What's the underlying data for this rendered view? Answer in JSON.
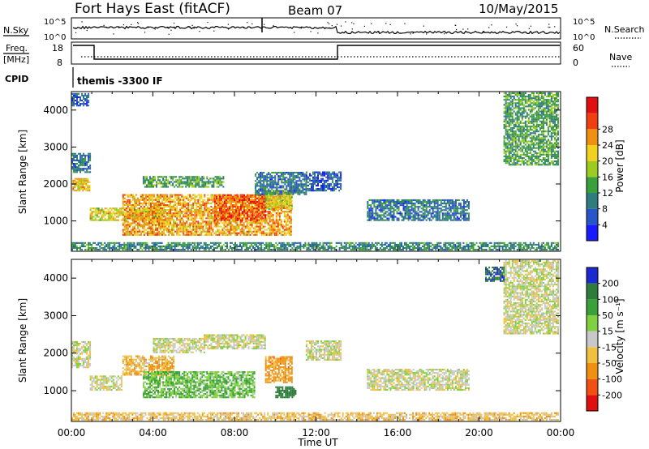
{
  "header": {
    "station": "Fort Hays East (fitACF)",
    "beam": "Beam 07",
    "date": "10/May/2015"
  },
  "strip_panels": {
    "nsky_label": "N.Sky",
    "nsearch_label": "N.Search",
    "freq_label_line1": "Freq.",
    "freq_label_line2": "[MHz]",
    "nave_label": "Nave",
    "cpid_label": "CPID",
    "cpid_text": "themis -3300 IF",
    "noise_left_ticks": [
      "10^5",
      "10^0"
    ],
    "noise_right_ticks": [
      "10^5",
      "10^0"
    ],
    "freq_left_ticks": [
      "18",
      "8"
    ],
    "freq_right_ticks": [
      "60",
      "0"
    ]
  },
  "chart_data": [
    {
      "type": "heatmap",
      "name": "power",
      "ylabel": "Slant Range [km]",
      "xlabel": "",
      "xlim": [
        0,
        24
      ],
      "ylim": [
        180,
        4500
      ],
      "ytick_labels": [
        "1000",
        "2000",
        "3000",
        "4000"
      ],
      "ytick_values": [
        1000,
        2000,
        3000,
        4000
      ],
      "colorbar": {
        "label": "Power [dB]",
        "range": [
          0,
          32
        ],
        "tick_labels": [
          "4",
          "8",
          "12",
          "16",
          "20",
          "24",
          "28"
        ],
        "tick_values": [
          4,
          8,
          12,
          16,
          20,
          24,
          28
        ],
        "colors": [
          "#1a1aff",
          "#2855c8",
          "#2e7c7c",
          "#3aa03a",
          "#9ccc20",
          "#f0d020",
          "#f09010",
          "#f04010",
          "#e01010"
        ]
      },
      "features": [
        {
          "t0": 0.05,
          "t1": 0.9,
          "r0": 1800,
          "r1": 2150,
          "level": 20
        },
        {
          "t0": 0.0,
          "t1": 0.9,
          "r0": 2300,
          "r1": 2800,
          "level": 8
        },
        {
          "t0": 0.9,
          "t1": 4.5,
          "r0": 1000,
          "r1": 1350,
          "level": 18
        },
        {
          "t0": 3.5,
          "t1": 7.5,
          "r0": 1900,
          "r1": 2200,
          "level": 12
        },
        {
          "t0": 2.5,
          "t1": 10.8,
          "r0": 600,
          "r1": 1700,
          "level": 22
        },
        {
          "t0": 7.0,
          "t1": 9.5,
          "r0": 1000,
          "r1": 1700,
          "level": 26
        },
        {
          "t0": 9.5,
          "t1": 10.8,
          "r0": 1300,
          "r1": 1800,
          "level": 18
        },
        {
          "t0": 9.0,
          "t1": 11.5,
          "r0": 1700,
          "r1": 2300,
          "level": 8
        },
        {
          "t0": 11.5,
          "t1": 13.2,
          "r0": 1800,
          "r1": 2300,
          "level": 6
        },
        {
          "t0": 14.5,
          "t1": 19.5,
          "r0": 1000,
          "r1": 1550,
          "level": 8
        },
        {
          "t0": 21.2,
          "t1": 23.9,
          "r0": 2500,
          "r1": 4450,
          "level": 12
        },
        {
          "t0": 0.0,
          "t1": 0.8,
          "r0": 4100,
          "r1": 4450,
          "level": 6
        },
        {
          "t0": 0.0,
          "t1": 23.9,
          "r0": 200,
          "r1": 400,
          "level": 10
        }
      ]
    },
    {
      "type": "heatmap",
      "name": "velocity",
      "ylabel": "Slant Range [km]",
      "xlabel": "Time UT",
      "xlim": [
        0,
        24
      ],
      "ylim": [
        180,
        4500
      ],
      "xtick_labels": [
        "00:00",
        "04:00",
        "08:00",
        "12:00",
        "16:00",
        "20:00",
        "00:00"
      ],
      "xtick_values": [
        0,
        4,
        8,
        12,
        16,
        20,
        24
      ],
      "ytick_labels": [
        "1000",
        "2000",
        "3000",
        "4000"
      ],
      "ytick_values": [
        1000,
        2000,
        3000,
        4000
      ],
      "colorbar": {
        "label": "Velocity [m s⁻¹]",
        "tick_labels": [
          "200",
          "100",
          "50",
          "15",
          "-15",
          "-50",
          "-100",
          "-200"
        ],
        "tick_values": [
          200,
          100,
          50,
          15,
          -15,
          -50,
          -100,
          -200
        ],
        "colors": [
          "#1a2ad0",
          "#2e7c3a",
          "#3aa03a",
          "#80d040",
          "#c8c8c8",
          "#f0c040",
          "#f09010",
          "#f05010",
          "#e01010"
        ]
      },
      "features": [
        {
          "t0": 0.0,
          "t1": 0.9,
          "r0": 1600,
          "r1": 2300,
          "level": 0
        },
        {
          "t0": 0.9,
          "t1": 2.5,
          "r0": 1000,
          "r1": 1400,
          "level": 0
        },
        {
          "t0": 2.5,
          "t1": 5.0,
          "r0": 1400,
          "r1": 1900,
          "level": -40
        },
        {
          "t0": 4.0,
          "t1": 6.5,
          "r0": 2000,
          "r1": 2400,
          "level": 0
        },
        {
          "t0": 3.5,
          "t1": 9.0,
          "r0": 800,
          "r1": 1500,
          "level": 45
        },
        {
          "t0": 6.5,
          "t1": 9.5,
          "r0": 2100,
          "r1": 2500,
          "level": 0
        },
        {
          "t0": 9.5,
          "t1": 10.8,
          "r0": 1200,
          "r1": 1900,
          "level": -70
        },
        {
          "t0": 10.0,
          "t1": 11.0,
          "r0": 800,
          "r1": 1100,
          "level": 150
        },
        {
          "t0": 11.5,
          "t1": 13.2,
          "r0": 1800,
          "r1": 2300,
          "level": 0
        },
        {
          "t0": 14.5,
          "t1": 19.5,
          "r0": 1000,
          "r1": 1550,
          "level": 0
        },
        {
          "t0": 21.2,
          "t1": 23.9,
          "r0": 2500,
          "r1": 4450,
          "level": 0
        },
        {
          "t0": 20.3,
          "t1": 21.2,
          "r0": 3900,
          "r1": 4300,
          "level": 200
        },
        {
          "t0": 0.0,
          "t1": 23.9,
          "r0": 200,
          "r1": 400,
          "level": -30
        }
      ]
    }
  ]
}
